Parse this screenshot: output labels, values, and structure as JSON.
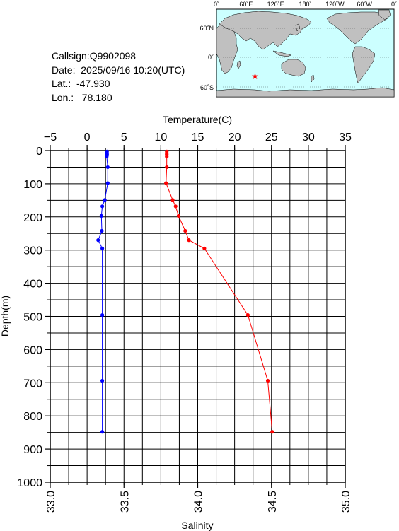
{
  "info": {
    "callsign": "Callsign:Q9902098",
    "date": "Date:  2025/09/16 10:20(UTC)",
    "lat": "Lat.:  -47.930",
    "lon": "Lon.:   78.180"
  },
  "map": {
    "top_labels": [
      "0˚",
      "60˚E",
      "120˚E",
      "180˚",
      "120˚W",
      "60˚W",
      "0˚"
    ],
    "side_labels": [
      "60˚N",
      "0˚",
      "60˚S"
    ],
    "station": {
      "lon": 78.18,
      "lat": -47.93
    },
    "colors": {
      "ocean": "#ccffff",
      "land": "#c0c0c0",
      "marker": "#ff0000"
    }
  },
  "chart_data": {
    "type": "line",
    "top_axis": {
      "label": "Temperature(C)",
      "range": [
        -5,
        35
      ],
      "ticks": [
        "−5",
        "0",
        "5",
        "10",
        "15",
        "20",
        "25",
        "30",
        "35"
      ]
    },
    "bottom_axis": {
      "label": "Salinity",
      "range": [
        33.0,
        35.0
      ],
      "ticks": [
        "33.0",
        "33.5",
        "34.0",
        "34.5",
        "35.0"
      ]
    },
    "y_axis": {
      "label": "Depth(m)",
      "range": [
        0,
        1000
      ],
      "inverted": true,
      "ticks": [
        "0",
        "100",
        "200",
        "300",
        "400",
        "500",
        "600",
        "700",
        "800",
        "900",
        "1000"
      ]
    },
    "grid": true,
    "series": [
      {
        "axis": "top",
        "color": "#ff0000",
        "x": [
          10.8,
          10.8,
          10.8,
          10.8,
          10.8,
          10.7,
          11.6,
          12.0,
          12.4,
          13.3,
          13.8,
          15.9,
          21.8,
          24.5,
          25.1
        ],
        "y": [
          3,
          8,
          12,
          18,
          50,
          98,
          149,
          168,
          197,
          242,
          270,
          295,
          496,
          694,
          848
        ]
      },
      {
        "axis": "bottom",
        "color": "#0000ff",
        "x": [
          33.385,
          33.385,
          33.385,
          33.383,
          33.39,
          33.39,
          33.37,
          33.353,
          33.347,
          33.35,
          33.325,
          33.353,
          33.353,
          33.353,
          33.353
        ],
        "y": [
          3,
          8,
          12,
          18,
          50,
          98,
          149,
          168,
          197,
          242,
          270,
          295,
          496,
          694,
          848
        ]
      }
    ]
  }
}
